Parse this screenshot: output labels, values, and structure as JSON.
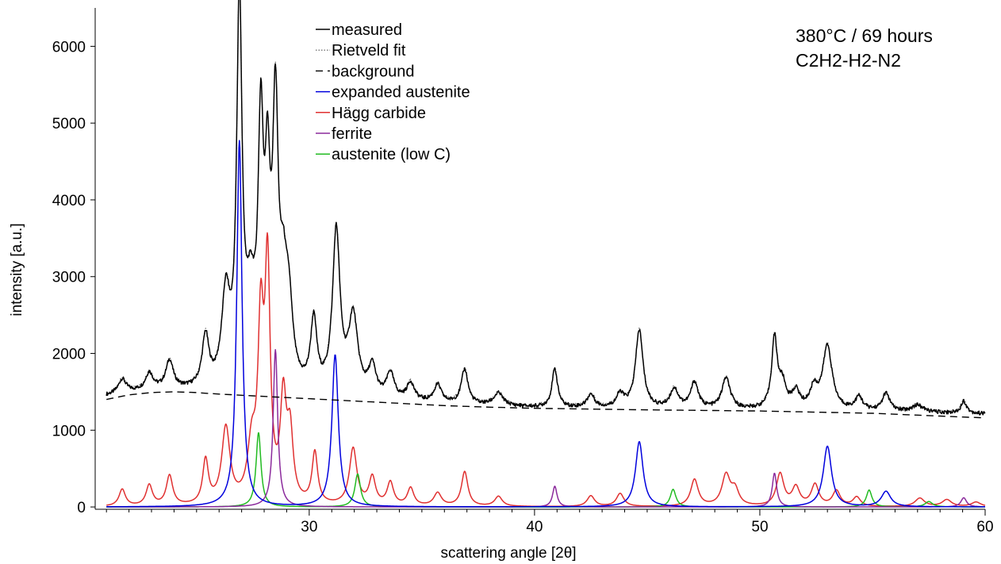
{
  "chart_data": {
    "type": "line",
    "title": "",
    "xlabel": "scattering angle [2θ]",
    "ylabel": "intensity [a.u.]",
    "xlim": [
      20.5,
      60
    ],
    "ylim": [
      -30,
      6500
    ],
    "x_ticks": [
      30,
      40,
      50,
      60
    ],
    "y_ticks": [
      0,
      1000,
      2000,
      3000,
      4000,
      5000,
      6000
    ],
    "grid": false,
    "legend_position": "top-center",
    "annotations": [
      "380°C / 69 hours",
      "C2H2-H2-N2"
    ],
    "series": [
      {
        "name": "measured",
        "color": "#000000",
        "style": "solid",
        "background": {
          "x": [
            21,
            22,
            23,
            24,
            25,
            26,
            28,
            30,
            32,
            34,
            36,
            38,
            40,
            45,
            50,
            55,
            60
          ],
          "y": [
            1440,
            1480,
            1500,
            1500,
            1490,
            1470,
            1450,
            1420,
            1390,
            1360,
            1330,
            1310,
            1290,
            1270,
            1260,
            1240,
            1210
          ]
        },
        "peaks": [
          {
            "x": 21.7,
            "h": 180,
            "w": 0.2
          },
          {
            "x": 22.9,
            "h": 220,
            "w": 0.2
          },
          {
            "x": 23.8,
            "h": 370,
            "w": 0.2
          },
          {
            "x": 25.4,
            "h": 660,
            "w": 0.18
          },
          {
            "x": 26.3,
            "h": 1150,
            "w": 0.22
          },
          {
            "x": 26.9,
            "h": 5000,
            "w": 0.14
          },
          {
            "x": 27.4,
            "h": 1000,
            "w": 0.25
          },
          {
            "x": 27.85,
            "h": 3100,
            "w": 0.14
          },
          {
            "x": 28.15,
            "h": 2300,
            "w": 0.14
          },
          {
            "x": 28.5,
            "h": 3400,
            "w": 0.15
          },
          {
            "x": 28.85,
            "h": 1100,
            "w": 0.2
          },
          {
            "x": 29.1,
            "h": 900,
            "w": 0.2
          },
          {
            "x": 30.2,
            "h": 900,
            "w": 0.17
          },
          {
            "x": 31.2,
            "h": 2100,
            "w": 0.2
          },
          {
            "x": 31.95,
            "h": 1000,
            "w": 0.25
          },
          {
            "x": 32.8,
            "h": 380,
            "w": 0.2
          },
          {
            "x": 33.6,
            "h": 330,
            "w": 0.2
          },
          {
            "x": 34.5,
            "h": 230,
            "w": 0.2
          },
          {
            "x": 35.7,
            "h": 230,
            "w": 0.2
          },
          {
            "x": 36.9,
            "h": 450,
            "w": 0.18
          },
          {
            "x": 38.4,
            "h": 160,
            "w": 0.25
          },
          {
            "x": 40.9,
            "h": 500,
            "w": 0.15
          },
          {
            "x": 42.5,
            "h": 170,
            "w": 0.2
          },
          {
            "x": 43.8,
            "h": 170,
            "w": 0.2
          },
          {
            "x": 44.65,
            "h": 1020,
            "w": 0.2
          },
          {
            "x": 46.2,
            "h": 250,
            "w": 0.22
          },
          {
            "x": 47.1,
            "h": 340,
            "w": 0.2
          },
          {
            "x": 48.5,
            "h": 400,
            "w": 0.22
          },
          {
            "x": 50.65,
            "h": 900,
            "w": 0.15
          },
          {
            "x": 51.0,
            "h": 300,
            "w": 0.2
          },
          {
            "x": 51.6,
            "h": 220,
            "w": 0.2
          },
          {
            "x": 52.4,
            "h": 250,
            "w": 0.2
          },
          {
            "x": 53.0,
            "h": 830,
            "w": 0.25
          },
          {
            "x": 54.4,
            "h": 170,
            "w": 0.2
          },
          {
            "x": 55.6,
            "h": 230,
            "w": 0.2
          },
          {
            "x": 57.0,
            "h": 90,
            "w": 0.3
          },
          {
            "x": 59.05,
            "h": 160,
            "w": 0.15
          }
        ]
      },
      {
        "name": "Rietveld fit",
        "color": "#555555",
        "style": "dotted",
        "same_as": "measured",
        "offset": 40
      },
      {
        "name": "background",
        "color": "#000000",
        "style": "dashed",
        "x": [
          21,
          22,
          23,
          24,
          25,
          26,
          28,
          30,
          32,
          34,
          36,
          38,
          40,
          45,
          50,
          55,
          60
        ],
        "y": [
          1400,
          1460,
          1490,
          1500,
          1490,
          1470,
          1440,
          1410,
          1380,
          1350,
          1320,
          1300,
          1285,
          1265,
          1250,
          1220,
          1160
        ]
      },
      {
        "name": "expanded austenite",
        "color": "#0000dd",
        "style": "solid",
        "peaks": [
          {
            "x": 26.9,
            "h": 4770,
            "w": 0.14
          },
          {
            "x": 31.15,
            "h": 1980,
            "w": 0.17
          },
          {
            "x": 44.65,
            "h": 850,
            "w": 0.2
          },
          {
            "x": 53.0,
            "h": 790,
            "w": 0.22
          },
          {
            "x": 55.6,
            "h": 200,
            "w": 0.25
          }
        ]
      },
      {
        "name": "Hägg carbide",
        "color": "#e03030",
        "style": "solid",
        "peaks": [
          {
            "x": 21.7,
            "h": 220,
            "w": 0.17
          },
          {
            "x": 22.9,
            "h": 270,
            "w": 0.17
          },
          {
            "x": 23.8,
            "h": 390,
            "w": 0.17
          },
          {
            "x": 25.4,
            "h": 570,
            "w": 0.15
          },
          {
            "x": 26.3,
            "h": 990,
            "w": 0.22
          },
          {
            "x": 27.45,
            "h": 700,
            "w": 0.22
          },
          {
            "x": 27.85,
            "h": 2200,
            "w": 0.15
          },
          {
            "x": 28.15,
            "h": 2950,
            "w": 0.14
          },
          {
            "x": 28.85,
            "h": 1300,
            "w": 0.16
          },
          {
            "x": 29.15,
            "h": 850,
            "w": 0.16
          },
          {
            "x": 30.25,
            "h": 670,
            "w": 0.15
          },
          {
            "x": 31.95,
            "h": 740,
            "w": 0.2
          },
          {
            "x": 32.8,
            "h": 360,
            "w": 0.17
          },
          {
            "x": 33.6,
            "h": 300,
            "w": 0.17
          },
          {
            "x": 34.5,
            "h": 230,
            "w": 0.17
          },
          {
            "x": 35.7,
            "h": 170,
            "w": 0.2
          },
          {
            "x": 36.9,
            "h": 450,
            "w": 0.17
          },
          {
            "x": 38.4,
            "h": 130,
            "w": 0.2
          },
          {
            "x": 42.5,
            "h": 140,
            "w": 0.2
          },
          {
            "x": 43.8,
            "h": 170,
            "w": 0.2
          },
          {
            "x": 47.1,
            "h": 350,
            "w": 0.2
          },
          {
            "x": 48.5,
            "h": 400,
            "w": 0.22
          },
          {
            "x": 48.9,
            "h": 200,
            "w": 0.2
          },
          {
            "x": 50.9,
            "h": 420,
            "w": 0.2
          },
          {
            "x": 51.6,
            "h": 240,
            "w": 0.2
          },
          {
            "x": 52.45,
            "h": 280,
            "w": 0.2
          },
          {
            "x": 53.4,
            "h": 200,
            "w": 0.2
          },
          {
            "x": 54.3,
            "h": 120,
            "w": 0.2
          },
          {
            "x": 57.1,
            "h": 110,
            "w": 0.25
          },
          {
            "x": 58.3,
            "h": 90,
            "w": 0.25
          },
          {
            "x": 59.6,
            "h": 60,
            "w": 0.25
          }
        ]
      },
      {
        "name": "ferrite",
        "color": "#8b2a9c",
        "style": "solid",
        "peaks": [
          {
            "x": 28.5,
            "h": 2050,
            "w": 0.12
          },
          {
            "x": 40.9,
            "h": 270,
            "w": 0.12
          },
          {
            "x": 50.65,
            "h": 440,
            "w": 0.12
          },
          {
            "x": 59.05,
            "h": 120,
            "w": 0.15
          }
        ]
      },
      {
        "name": "austenite (low C)",
        "color": "#22bb22",
        "style": "solid",
        "peaks": [
          {
            "x": 27.75,
            "h": 970,
            "w": 0.13
          },
          {
            "x": 32.15,
            "h": 430,
            "w": 0.15
          },
          {
            "x": 46.15,
            "h": 230,
            "w": 0.15
          },
          {
            "x": 54.85,
            "h": 220,
            "w": 0.15
          },
          {
            "x": 57.5,
            "h": 70,
            "w": 0.2
          }
        ]
      }
    ]
  }
}
